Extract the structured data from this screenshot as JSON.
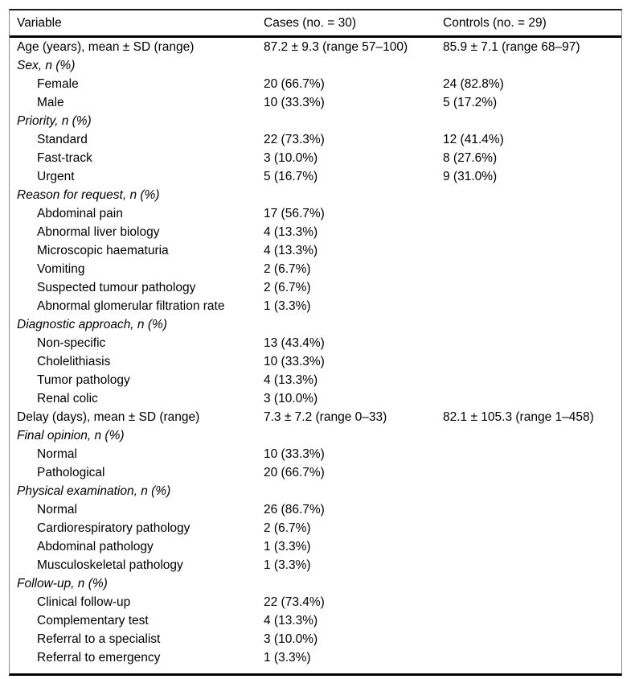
{
  "table": {
    "columns": [
      "Variable",
      "Cases (no. = 30)",
      "Controls (no. = 29)"
    ],
    "rows": [
      {
        "label": "Age (years), mean ± SD (range)",
        "style": "plain",
        "cases": "87.2 ± 9.3 (range 57–100)",
        "controls": "85.9 ± 7.1 (range 68–97)"
      },
      {
        "label": "Sex, n (%)",
        "style": "section",
        "cases": "",
        "controls": ""
      },
      {
        "label": "Female",
        "style": "indent",
        "cases": "20 (66.7%)",
        "controls": "24 (82.8%)"
      },
      {
        "label": "Male",
        "style": "indent",
        "cases": "10 (33.3%)",
        "controls": "5 (17.2%)"
      },
      {
        "label": "Priority, n (%)",
        "style": "section",
        "cases": "",
        "controls": ""
      },
      {
        "label": "Standard",
        "style": "indent",
        "cases": "22 (73.3%)",
        "controls": "12 (41.4%)"
      },
      {
        "label": "Fast-track",
        "style": "indent",
        "cases": "3 (10.0%)",
        "controls": "8 (27.6%)"
      },
      {
        "label": "Urgent",
        "style": "indent",
        "cases": "5 (16.7%)",
        "controls": "9 (31.0%)"
      },
      {
        "label": "Reason for request, n (%)",
        "style": "section",
        "cases": "",
        "controls": ""
      },
      {
        "label": "Abdominal pain",
        "style": "indent",
        "cases": "17 (56.7%)",
        "controls": ""
      },
      {
        "label": "Abnormal liver biology",
        "style": "indent",
        "cases": "4 (13.3%)",
        "controls": ""
      },
      {
        "label": "Microscopic haematuria",
        "style": "indent",
        "cases": "4 (13.3%)",
        "controls": ""
      },
      {
        "label": "Vomiting",
        "style": "indent",
        "cases": "2 (6.7%)",
        "controls": ""
      },
      {
        "label": "Suspected tumour pathology",
        "style": "indent",
        "cases": "2 (6.7%)",
        "controls": ""
      },
      {
        "label": "Abnormal glomerular filtration rate",
        "style": "indent",
        "cases": "1 (3.3%)",
        "controls": ""
      },
      {
        "label": "Diagnostic approach, n (%)",
        "style": "section",
        "cases": "",
        "controls": ""
      },
      {
        "label": "Non-specific",
        "style": "indent",
        "cases": "13 (43.4%)",
        "controls": ""
      },
      {
        "label": "Cholelithiasis",
        "style": "indent",
        "cases": "10 (33.3%)",
        "controls": ""
      },
      {
        "label": "Tumor pathology",
        "style": "indent",
        "cases": "4 (13.3%)",
        "controls": ""
      },
      {
        "label": "Renal colic",
        "style": "indent",
        "cases": "3 (10.0%)",
        "controls": ""
      },
      {
        "label": "Delay (days), mean ± SD (range)",
        "style": "plain",
        "cases": "7.3 ± 7.2 (range 0–33)",
        "controls": "82.1 ± 105.3 (range 1–458)"
      },
      {
        "label": "Final opinion, n (%)",
        "style": "section",
        "cases": "",
        "controls": ""
      },
      {
        "label": "Normal",
        "style": "indent",
        "cases": "10 (33.3%)",
        "controls": ""
      },
      {
        "label": "Pathological",
        "style": "indent",
        "cases": "20 (66.7%)",
        "controls": ""
      },
      {
        "label": "Physical examination, n (%)",
        "style": "section",
        "cases": "",
        "controls": ""
      },
      {
        "label": "Normal",
        "style": "indent",
        "cases": "26 (86.7%)",
        "controls": ""
      },
      {
        "label": "Cardiorespiratory pathology",
        "style": "indent",
        "cases": "2 (6.7%)",
        "controls": ""
      },
      {
        "label": "Abdominal pathology",
        "style": "indent",
        "cases": "1 (3.3%)",
        "controls": ""
      },
      {
        "label": "Musculoskeletal pathology",
        "style": "indent",
        "cases": "1 (3.3%)",
        "controls": ""
      },
      {
        "label": "Follow-up, n (%)",
        "style": "section",
        "cases": "",
        "controls": ""
      },
      {
        "label": "Clinical follow-up",
        "style": "indent",
        "cases": "22 (73.4%)",
        "controls": ""
      },
      {
        "label": "Complementary test",
        "style": "indent",
        "cases": "4 (13.3%)",
        "controls": ""
      },
      {
        "label": "Referral to a specialist",
        "style": "indent",
        "cases": "3 (10.0%)",
        "controls": ""
      },
      {
        "label": "Referral to emergency",
        "style": "indent",
        "cases": "1 (3.3%)",
        "controls": ""
      }
    ]
  }
}
